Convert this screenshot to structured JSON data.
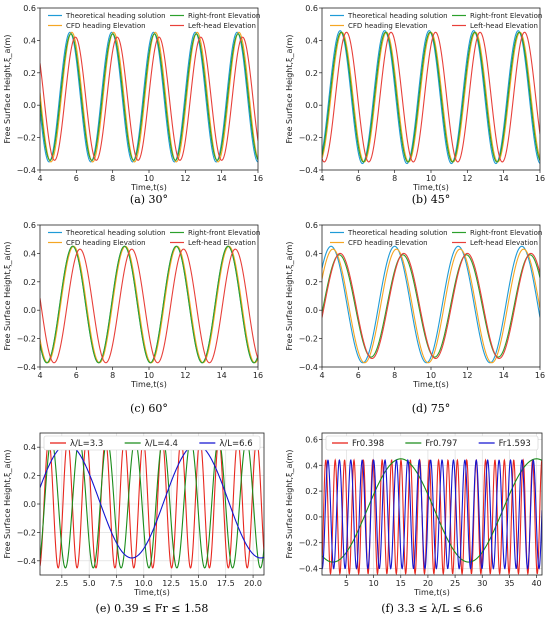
{
  "chart_data": [
    {
      "id": "a",
      "type": "line",
      "caption": "(a) 30°",
      "xlabel": "Time,t(s)",
      "ylabel": "Free Surface Height,ξ_a(m)",
      "xlim": [
        4,
        16
      ],
      "ylim": [
        -0.4,
        0.6
      ],
      "xticks": [
        4,
        6,
        8,
        10,
        12,
        14,
        16
      ],
      "xtick_labels": [
        "4",
        "6",
        "8",
        "10",
        "12",
        "14",
        "16"
      ],
      "yticks": [
        -0.4,
        -0.2,
        0.0,
        0.2,
        0.4,
        0.6
      ],
      "ytick_labels": [
        "−0.4",
        "−0.2",
        "0.0",
        "0.2",
        "0.4",
        "0.6"
      ],
      "legend_columns": 2,
      "grid": false,
      "series": [
        {
          "name": "Theoretical heading solution",
          "color": "#1f9bd7",
          "amplitude": 0.4,
          "mean": 0.05,
          "period": 2.3,
          "peak_t": 5.65
        },
        {
          "name": "CFD heading Elevation",
          "color": "#f5a623",
          "amplitude": 0.4,
          "mean": 0.05,
          "period": 2.3,
          "peak_t": 5.75
        },
        {
          "name": "Right-front Elevation",
          "color": "#2ca02c",
          "amplitude": 0.39,
          "mean": 0.05,
          "period": 2.3,
          "peak_t": 5.7
        },
        {
          "name": "Left-head Elevation",
          "color": "#e8403a",
          "amplitude": 0.38,
          "mean": 0.04,
          "period": 2.3,
          "peak_t": 5.95
        }
      ]
    },
    {
      "id": "b",
      "type": "line",
      "caption": "(b) 45°",
      "xlabel": "Time,t(s)",
      "ylabel": "Free Surface Height,ξ_a(m)",
      "xlim": [
        4,
        16
      ],
      "ylim": [
        -0.4,
        0.6
      ],
      "xticks": [
        4,
        6,
        8,
        10,
        12,
        14,
        16
      ],
      "xtick_labels": [
        "4",
        "6",
        "8",
        "10",
        "12",
        "14",
        "16"
      ],
      "yticks": [
        -0.4,
        -0.2,
        0.0,
        0.2,
        0.4,
        0.6
      ],
      "ytick_labels": [
        "−0.4",
        "−0.2",
        "0.0",
        "0.2",
        "0.4",
        "0.6"
      ],
      "legend_columns": 2,
      "grid": false,
      "series": [
        {
          "name": "Theoretical heading solution",
          "color": "#1f9bd7",
          "amplitude": 0.41,
          "mean": 0.05,
          "period": 2.45,
          "peak_t": 5.0
        },
        {
          "name": "CFD heading Elevation",
          "color": "#f5a623",
          "amplitude": 0.4,
          "mean": 0.05,
          "period": 2.45,
          "peak_t": 5.1
        },
        {
          "name": "Right-front Elevation",
          "color": "#2ca02c",
          "amplitude": 0.4,
          "mean": 0.05,
          "period": 2.45,
          "peak_t": 5.05
        },
        {
          "name": "Left-head Elevation",
          "color": "#e8403a",
          "amplitude": 0.4,
          "mean": 0.05,
          "period": 2.45,
          "peak_t": 5.35
        }
      ]
    },
    {
      "id": "c",
      "type": "line",
      "caption": "(c) 60°",
      "xlabel": "Time,t(s)",
      "ylabel": "Free Surface Height,ξ_a(m)",
      "xlim": [
        4,
        16
      ],
      "ylim": [
        -0.4,
        0.6
      ],
      "xticks": [
        4,
        6,
        8,
        10,
        12,
        14,
        16
      ],
      "xtick_labels": [
        "4",
        "6",
        "8",
        "10",
        "12",
        "14",
        "16"
      ],
      "yticks": [
        -0.4,
        -0.2,
        0.0,
        0.2,
        0.4,
        0.6
      ],
      "ytick_labels": [
        "−0.4",
        "−0.2",
        "0.0",
        "0.2",
        "0.4",
        "0.6"
      ],
      "legend_columns": 2,
      "grid": false,
      "series": [
        {
          "name": "Theoretical heading solution",
          "color": "#1f9bd7",
          "amplitude": 0.41,
          "mean": 0.04,
          "period": 2.85,
          "peak_t": 5.8
        },
        {
          "name": "CFD heading Elevation",
          "color": "#f5a623",
          "amplitude": 0.41,
          "mean": 0.04,
          "period": 2.85,
          "peak_t": 5.85
        },
        {
          "name": "Right-front Elevation",
          "color": "#2ca02c",
          "amplitude": 0.41,
          "mean": 0.04,
          "period": 2.85,
          "peak_t": 5.8
        },
        {
          "name": "Left-head Elevation",
          "color": "#e8403a",
          "amplitude": 0.4,
          "mean": 0.03,
          "period": 2.85,
          "peak_t": 6.2
        }
      ]
    },
    {
      "id": "d",
      "type": "line",
      "caption": "(d) 75°",
      "xlabel": "Time,t(s)",
      "ylabel": "Free Surface Height,ξ_a(m)",
      "xlim": [
        4,
        16
      ],
      "ylim": [
        -0.4,
        0.6
      ],
      "xticks": [
        4,
        6,
        8,
        10,
        12,
        14,
        16
      ],
      "xtick_labels": [
        "4",
        "6",
        "8",
        "10",
        "12",
        "14",
        "16"
      ],
      "yticks": [
        -0.4,
        -0.2,
        0.0,
        0.2,
        0.4,
        0.6
      ],
      "ytick_labels": [
        "−0.4",
        "−0.2",
        "0.0",
        "0.2",
        "0.4",
        "0.6"
      ],
      "legend_columns": 2,
      "grid": false,
      "series": [
        {
          "name": "Theoretical heading solution",
          "color": "#1f9bd7",
          "amplitude": 0.41,
          "mean": 0.04,
          "period": 3.5,
          "peak_t": 4.5
        },
        {
          "name": "CFD heading Elevation",
          "color": "#f5a623",
          "amplitude": 0.4,
          "mean": 0.03,
          "period": 3.5,
          "peak_t": 4.6
        },
        {
          "name": "Right-front Elevation",
          "color": "#2ca02c",
          "amplitude": 0.36,
          "mean": 0.03,
          "period": 3.5,
          "peak_t": 4.95
        },
        {
          "name": "Left-head Elevation",
          "color": "#e8403a",
          "amplitude": 0.37,
          "mean": 0.03,
          "period": 3.5,
          "peak_t": 5.0
        }
      ]
    },
    {
      "id": "e",
      "type": "line",
      "caption": "(e) 0.39 ≤ Fr ≤ 1.58",
      "xlabel": "Time,t(s)",
      "ylabel": "Free Surface Height,ξ_a(m)",
      "xlim": [
        0.5,
        21
      ],
      "ylim": [
        -0.5,
        0.5
      ],
      "xticks": [
        2.5,
        5.0,
        7.5,
        10.0,
        12.5,
        15.0,
        17.5,
        20.0
      ],
      "xtick_labels": [
        "2.5",
        "5.0",
        "7.5",
        "10.0",
        "12.5",
        "15.0",
        "17.5",
        "20.0"
      ],
      "yticks": [
        -0.4,
        -0.2,
        0.0,
        0.2,
        0.4
      ],
      "ytick_labels": [
        "−0.4",
        "−0.2",
        "0.0",
        "0.2",
        "0.4"
      ],
      "legend_columns": 3,
      "grid": true,
      "series": [
        {
          "name": "λ/L=3.3",
          "color": "#e8271e",
          "amplitude": 0.45,
          "mean": 0.0,
          "period": 1.73,
          "peak_t": 1.3
        },
        {
          "name": "λ/L=4.4",
          "color": "#1a8c1a",
          "amplitude": 0.45,
          "mean": 0.0,
          "period": 2.55,
          "peak_t": 1.55
        },
        {
          "name": "λ/L=6.6",
          "color": "#1515d0",
          "amplitude": 0.4,
          "mean": 0.02,
          "period": 11.8,
          "peak_t": 3.0
        }
      ]
    },
    {
      "id": "f",
      "type": "line",
      "caption": "(f) 3.3 ≤ λ/L ≤ 6.6",
      "xlabel": "Time,t(s)",
      "ylabel": "Free Surface Height,ξ_a(m)",
      "xlim": [
        0.5,
        41
      ],
      "ylim": [
        -0.45,
        0.65
      ],
      "xticks": [
        5,
        10,
        15,
        20,
        25,
        30,
        35,
        40
      ],
      "xtick_labels": [
        "5",
        "10",
        "15",
        "20",
        "25",
        "30",
        "35",
        "40"
      ],
      "yticks": [
        -0.4,
        -0.2,
        0.0,
        0.2,
        0.4,
        0.6
      ],
      "ytick_labels": [
        "−0.4",
        "−0.2",
        "0.0",
        "0.2",
        "0.4",
        "0.6"
      ],
      "legend_columns": 3,
      "grid": true,
      "series": [
        {
          "name": "Fr0.398",
          "color": "#e8271e",
          "amplitude": 0.44,
          "mean": 0.0,
          "period": 1.73,
          "peak_t": 1.2
        },
        {
          "name": "Fr0.797",
          "color": "#1a8c1a",
          "amplitude": 0.4,
          "mean": 0.05,
          "period": 25.0,
          "peak_t": 15.0
        },
        {
          "name": "Fr1.593",
          "color": "#1515d0",
          "amplitude": 0.42,
          "mean": 0.02,
          "period": 2.1,
          "peak_t": 1.6
        }
      ]
    }
  ]
}
